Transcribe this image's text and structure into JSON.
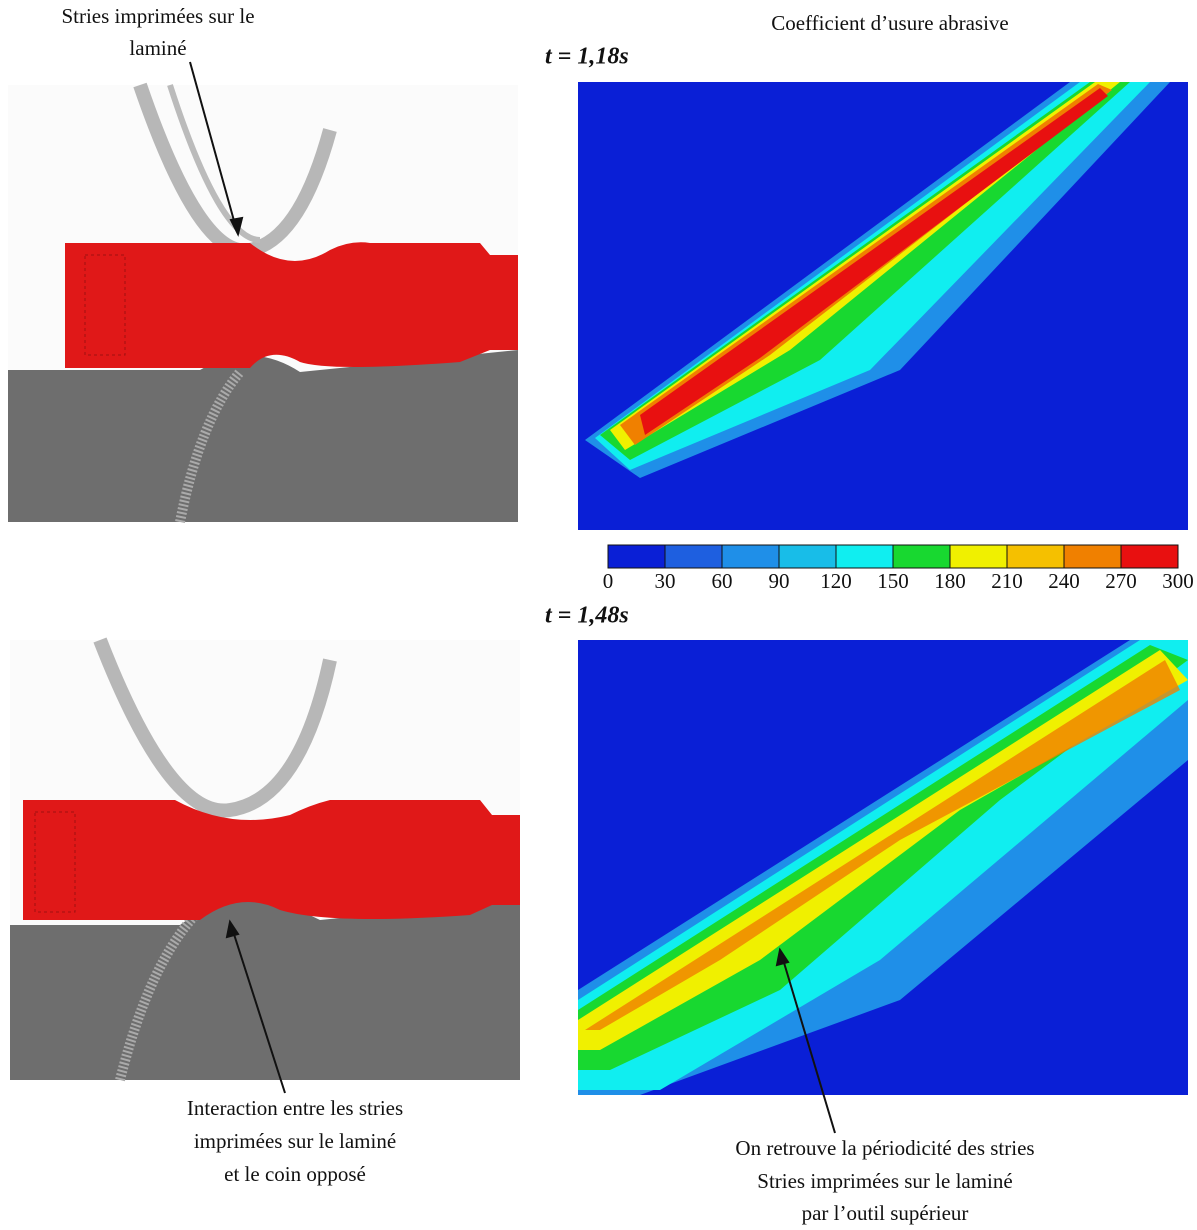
{
  "annotations": {
    "top_left": [
      "Stries imprimées sur le",
      "laminé"
    ],
    "bottom_left": [
      "Interaction entre les stries",
      "imprimées sur le laminé",
      "et le coin opposé"
    ],
    "bottom_right": [
      "On retrouve la périodicité des stries",
      "Stries imprimées sur le laminé",
      "par l’outil supérieur"
    ]
  },
  "colorbar": {
    "title": "Coefficient d’usure abrasive",
    "ticks": [
      0,
      30,
      60,
      90,
      120,
      150,
      180,
      210,
      240,
      270,
      300
    ],
    "colors": [
      "#0a1fd6",
      "#1e5fe0",
      "#1f8fe8",
      "#18bde8",
      "#10eef0",
      "#18d830",
      "#f0f000",
      "#f5c000",
      "#f08000",
      "#e81010"
    ]
  },
  "times": [
    "t = 1,18s",
    "t = 1,48s"
  ]
}
